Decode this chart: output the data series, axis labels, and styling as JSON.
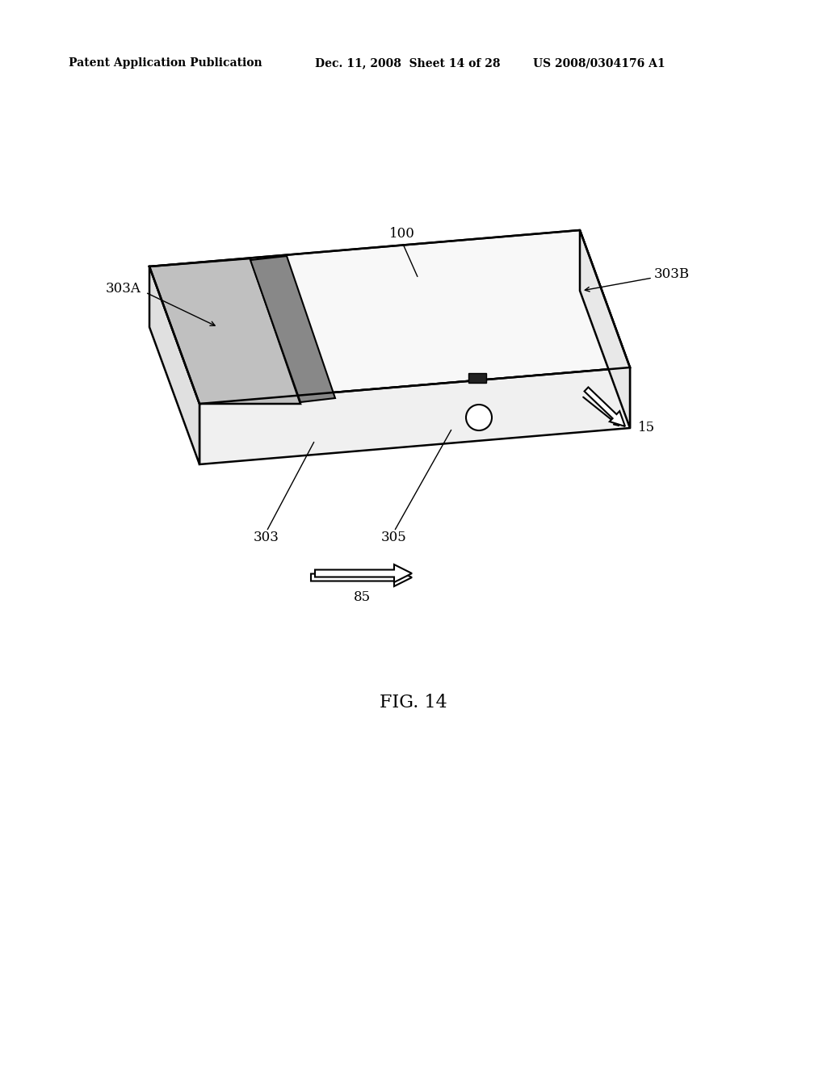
{
  "background_color": "#ffffff",
  "header_left": "Patent Application Publication",
  "header_mid": "Dec. 11, 2008  Sheet 14 of 28",
  "header_right": "US 2008/0304176 A1",
  "fig_label": "FIG. 14",
  "label_100": "100",
  "label_303A": "303A",
  "label_303B": "303B",
  "label_303": "303",
  "label_305": "305",
  "label_15": "15",
  "label_85": "85"
}
